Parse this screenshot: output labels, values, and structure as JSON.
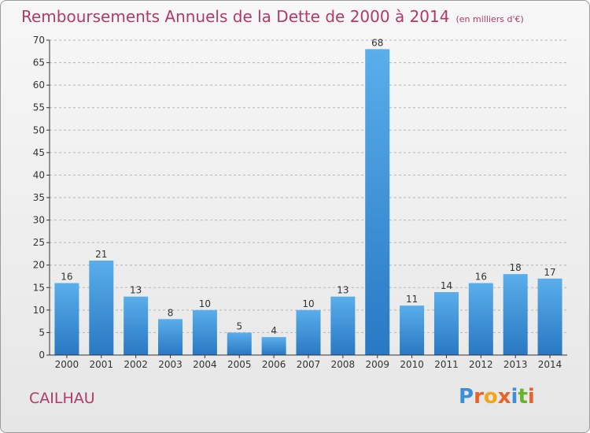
{
  "header": {
    "title": "Remboursements Annuels de la Dette de 2000 à 2014",
    "unit": "(en milliers d'€)"
  },
  "commune": "CAILHAU",
  "logo": {
    "text": "Proxiti",
    "letter_colors": [
      "#3a8fd6",
      "#e8632a",
      "#f2a51a",
      "#e8632a",
      "#3a8fd6",
      "#66b32e",
      "#e8632a"
    ]
  },
  "colors": {
    "title": "#b03a6a",
    "bar_top": "#5aaeea",
    "bar_bottom": "#2878c3",
    "grid": "#b5b5b5",
    "axis": "#333333"
  },
  "chart_data": {
    "type": "bar",
    "title": "Remboursements Annuels de la Dette de 2000 à 2014",
    "ylabel": "",
    "xlabel": "",
    "categories": [
      "2000",
      "2001",
      "2002",
      "2003",
      "2004",
      "2005",
      "2006",
      "2007",
      "2008",
      "2009",
      "2010",
      "2011",
      "2012",
      "2013",
      "2014"
    ],
    "values": [
      16,
      21,
      13,
      8,
      10,
      5,
      4,
      10,
      13,
      68,
      11,
      14,
      16,
      18,
      17
    ],
    "ylim": [
      0,
      70
    ],
    "yticks": [
      0,
      5,
      10,
      15,
      20,
      25,
      30,
      35,
      40,
      45,
      50,
      55,
      60,
      65,
      70
    ],
    "grid": true,
    "data_labels": true
  }
}
